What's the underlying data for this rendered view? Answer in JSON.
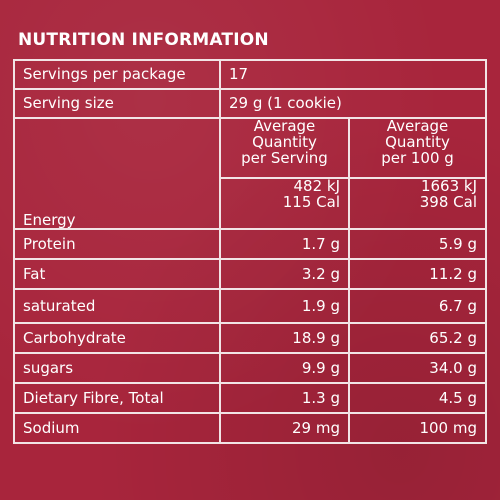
{
  "title": "NUTRITION INFORMATION",
  "info": {
    "servings_label": "Servings per package",
    "servings_value": "17",
    "size_label": "Serving size",
    "size_value": "29 g (1 cookie)"
  },
  "headers": {
    "per_serving": [
      "Average",
      "Quantity",
      "per Serving"
    ],
    "per_100g": [
      "Average",
      "Quantity",
      "per 100 g"
    ]
  },
  "energy": {
    "label": "Energy",
    "serving_kj": "482 kJ",
    "serving_cal": "115 Cal",
    "per100_kj": "1663 kJ",
    "per100_cal": "398 Cal"
  },
  "rows": [
    {
      "label": "Protein",
      "serving": "1.7 g",
      "per100": "5.9 g"
    },
    {
      "label": "Fat",
      "serving": "3.2 g",
      "per100": "11.2 g"
    },
    {
      "label": "saturated",
      "serving": "1.9 g",
      "per100": "6.7 g"
    },
    {
      "label": "Carbohydrate",
      "serving": "18.9 g",
      "per100": "65.2 g"
    },
    {
      "label": "sugars",
      "serving": "9.9 g",
      "per100": "34.0 g"
    },
    {
      "label": "Dietary Fibre, Total",
      "serving": "1.3 g",
      "per100": "4.5 g"
    },
    {
      "label": "Sodium",
      "serving": "29 mg",
      "per100": "100 mg"
    }
  ],
  "colors": {
    "background": "#a8253c",
    "text": "#ffffff",
    "rule": "#f2e4e6"
  }
}
